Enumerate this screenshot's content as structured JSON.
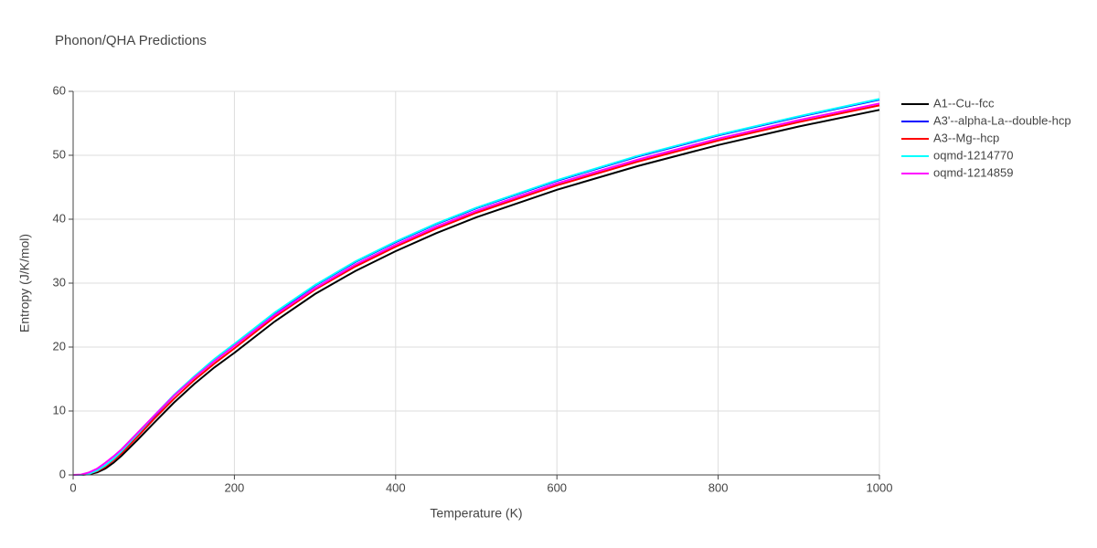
{
  "chart_data": {
    "type": "line",
    "title": "Phonon/QHA Predictions",
    "xlabel": "Temperature (K)",
    "ylabel": "Entropy (J/K/mol)",
    "x": [
      0,
      10,
      20,
      30,
      40,
      50,
      60,
      80,
      100,
      125,
      150,
      175,
      200,
      250,
      300,
      350,
      400,
      450,
      500,
      600,
      700,
      800,
      900,
      1000
    ],
    "series": [
      {
        "name": "A1--Cu--fcc",
        "color": "#000000",
        "values": [
          0,
          0,
          0.1,
          0.4,
          1.0,
          1.9,
          3.0,
          5.5,
          8.1,
          11.3,
          14.2,
          16.8,
          19.1,
          24.0,
          28.3,
          31.9,
          35.0,
          37.8,
          40.3,
          44.6,
          48.3,
          51.6,
          54.5,
          57.1
        ]
      },
      {
        "name": "A3'--alpha-La--double-hcp",
        "color": "#0000ff",
        "values": [
          0,
          0,
          0.2,
          0.7,
          1.5,
          2.5,
          3.7,
          6.4,
          9.1,
          12.4,
          15.3,
          18.0,
          20.4,
          25.3,
          29.6,
          33.3,
          36.4,
          39.2,
          41.7,
          46.0,
          49.8,
          53.1,
          56.0,
          58.7
        ]
      },
      {
        "name": "A3--Mg--hcp",
        "color": "#ff0000",
        "values": [
          0,
          0,
          0.2,
          0.6,
          1.3,
          2.3,
          3.4,
          6.0,
          8.7,
          11.9,
          14.8,
          17.4,
          19.8,
          24.7,
          29.0,
          32.6,
          35.7,
          38.5,
          41.0,
          45.3,
          49.0,
          52.3,
          55.2,
          57.8
        ]
      },
      {
        "name": "oqmd-1214770",
        "color": "#00ffff",
        "values": [
          0,
          0,
          0.2,
          0.7,
          1.5,
          2.5,
          3.7,
          6.4,
          9.2,
          12.5,
          15.4,
          18.1,
          20.5,
          25.4,
          29.7,
          33.4,
          36.5,
          39.3,
          41.8,
          46.1,
          49.9,
          53.2,
          56.1,
          58.8
        ]
      },
      {
        "name": "oqmd-1214859",
        "color": "#ff00ff",
        "values": [
          0,
          0.05,
          0.4,
          1.0,
          1.9,
          2.9,
          4.0,
          6.6,
          9.2,
          12.4,
          15.2,
          17.8,
          20.2,
          25.0,
          29.2,
          32.9,
          36.0,
          38.8,
          41.3,
          45.6,
          49.3,
          52.6,
          55.5,
          58.1
        ]
      }
    ],
    "xlim": [
      0,
      1000
    ],
    "xticks": [
      0,
      200,
      400,
      600,
      800,
      1000
    ],
    "ylim": [
      0,
      60
    ],
    "yticks": [
      0,
      10,
      20,
      30,
      40,
      50,
      60
    ],
    "grid": true,
    "legend": "right"
  }
}
